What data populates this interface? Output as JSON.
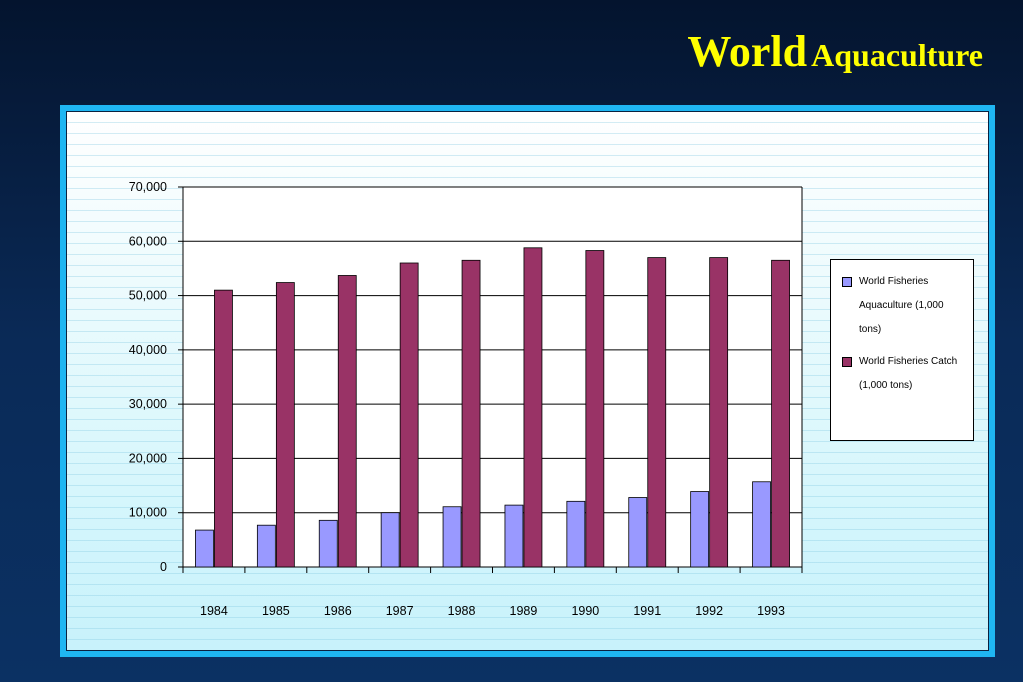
{
  "title": {
    "part1": "World",
    "part2": "Aquaculture"
  },
  "colors": {
    "aquaculture": "#9999ff",
    "catch": "#993366",
    "title": "#ffff00",
    "frame": "#1fb6f2"
  },
  "chart_data": {
    "type": "bar",
    "categories": [
      "1984",
      "1985",
      "1986",
      "1987",
      "1988",
      "1989",
      "1990",
      "1991",
      "1992",
      "1993"
    ],
    "series": [
      {
        "name": "World Fisheries Aquaculture (1,000 tons)",
        "values": [
          6800,
          7700,
          8600,
          10000,
          11100,
          11400,
          12100,
          12800,
          13900,
          15700
        ]
      },
      {
        "name": "World Fisheries Catch (1,000 tons)",
        "values": [
          51000,
          52400,
          53700,
          56000,
          56500,
          58800,
          58300,
          57000,
          57000,
          56500
        ]
      }
    ],
    "yticks": [
      "0",
      "10,000",
      "20,000",
      "30,000",
      "40,000",
      "50,000",
      "60,000",
      "70,000"
    ],
    "ylim": [
      0,
      70000
    ],
    "ystep": 10000,
    "grid": true,
    "legend": "right"
  }
}
